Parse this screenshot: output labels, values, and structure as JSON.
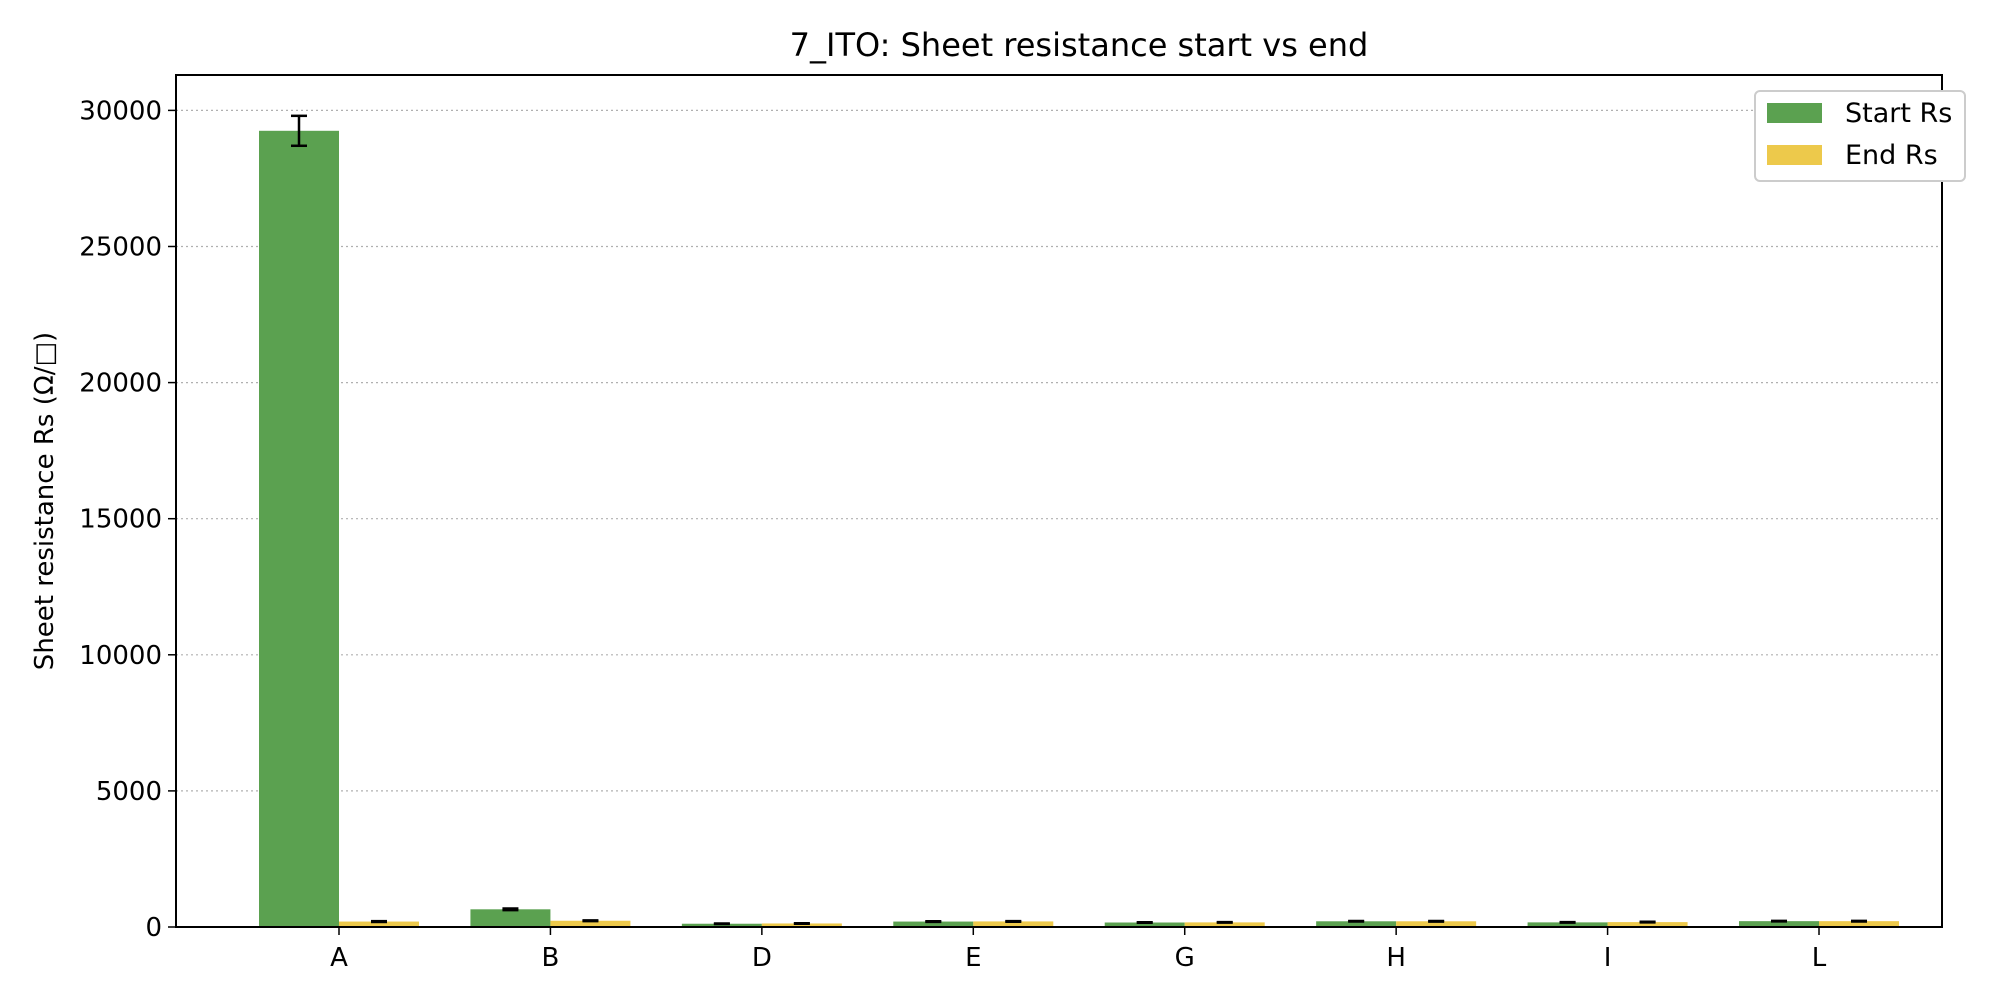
{
  "chart_data": {
    "type": "bar",
    "title": "7_ITO: Sheet resistance start vs end",
    "xlabel": "",
    "ylabel": "Sheet resistance Rs (Ω/□)",
    "categories": [
      "A",
      "B",
      "D",
      "E",
      "G",
      "H",
      "I",
      "L"
    ],
    "series": [
      {
        "name": "Start Rs",
        "color": "#5ba150",
        "values": [
          29250,
          650,
          120,
          200,
          165,
          210,
          170,
          215
        ],
        "errors": [
          550,
          30,
          10,
          12,
          10,
          10,
          10,
          10
        ]
      },
      {
        "name": "End Rs",
        "color": "#edc94b",
        "values": [
          200,
          230,
          130,
          205,
          170,
          210,
          180,
          215
        ],
        "errors": [
          15,
          15,
          10,
          12,
          10,
          12,
          12,
          12
        ]
      }
    ],
    "ylim": [
      0,
      31300
    ],
    "yticks": [
      0,
      5000,
      10000,
      15000,
      20000,
      25000,
      30000
    ],
    "grid": "y-dotted",
    "legend_position": "top-right"
  }
}
